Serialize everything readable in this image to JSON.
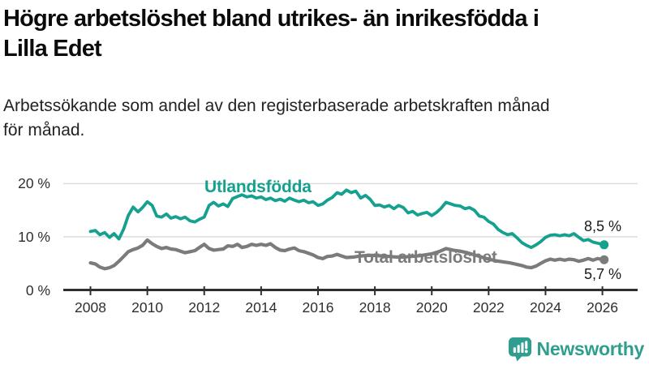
{
  "chart_data": {
    "type": "line",
    "title": "Högre arbetslöshet bland utrikes- än inrikesfödda i Lilla Edet",
    "title_lines": [
      "Högre arbetslöshet bland utrikes- än inrikesfödda i",
      "Lilla Edet"
    ],
    "subtitle": "Arbetssökande som andel av den registerbaserade arbetskraften månad för månad.",
    "subtitle_lines": [
      "Arbetssökande som andel av den registerbaserade arbetskraften månad",
      "för månad."
    ],
    "unit": "%",
    "grid": "horizontal",
    "legend": "inline-labels",
    "x_axis": {
      "range": [
        2008,
        2026.1
      ],
      "ticks": [
        {
          "value": 2008,
          "label": "2008"
        },
        {
          "value": 2010,
          "label": "2010"
        },
        {
          "value": 2012,
          "label": "2012"
        },
        {
          "value": 2014,
          "label": "2014"
        },
        {
          "value": 2016,
          "label": "2016"
        },
        {
          "value": 2018,
          "label": "2018"
        },
        {
          "value": 2020,
          "label": "2020"
        },
        {
          "value": 2022,
          "label": "2022"
        },
        {
          "value": 2024,
          "label": "2024"
        },
        {
          "value": 2026,
          "label": "2026"
        }
      ]
    },
    "y_axis": {
      "range": [
        0,
        22
      ],
      "ticks": [
        {
          "value": 0,
          "label": "0 %"
        },
        {
          "value": 10,
          "label": "10 %"
        },
        {
          "value": 20,
          "label": "20 %"
        }
      ]
    },
    "style": {
      "grid_color": "#d9d9d9",
      "axis_color": "#2f2f2f"
    },
    "series": [
      {
        "name": "Utlandsfödda",
        "color": "#15a08f",
        "end_value": 8.5,
        "end_label": "8,5 %",
        "points": [
          [
            2008.0,
            11.0
          ],
          [
            2008.17,
            11.2
          ],
          [
            2008.33,
            10.4
          ],
          [
            2008.5,
            10.8
          ],
          [
            2008.67,
            9.9
          ],
          [
            2008.83,
            10.6
          ],
          [
            2009.0,
            9.6
          ],
          [
            2009.17,
            11.5
          ],
          [
            2009.33,
            14.0
          ],
          [
            2009.5,
            15.6
          ],
          [
            2009.67,
            14.7
          ],
          [
            2009.83,
            15.5
          ],
          [
            2010.0,
            16.6
          ],
          [
            2010.17,
            15.9
          ],
          [
            2010.33,
            13.9
          ],
          [
            2010.5,
            13.7
          ],
          [
            2010.67,
            14.3
          ],
          [
            2010.83,
            13.5
          ],
          [
            2011.0,
            13.8
          ],
          [
            2011.17,
            13.4
          ],
          [
            2011.33,
            13.7
          ],
          [
            2011.5,
            13.0
          ],
          [
            2011.67,
            12.8
          ],
          [
            2011.83,
            13.3
          ],
          [
            2012.0,
            13.7
          ],
          [
            2012.17,
            15.9
          ],
          [
            2012.33,
            16.5
          ],
          [
            2012.5,
            15.8
          ],
          [
            2012.67,
            16.2
          ],
          [
            2012.83,
            15.7
          ],
          [
            2013.0,
            17.2
          ],
          [
            2013.17,
            17.6
          ],
          [
            2013.33,
            17.9
          ],
          [
            2013.5,
            17.5
          ],
          [
            2013.67,
            17.7
          ],
          [
            2013.83,
            17.3
          ],
          [
            2014.0,
            17.5
          ],
          [
            2014.17,
            17.0
          ],
          [
            2014.33,
            17.3
          ],
          [
            2014.5,
            16.8
          ],
          [
            2014.67,
            17.1
          ],
          [
            2014.83,
            16.7
          ],
          [
            2015.0,
            17.3
          ],
          [
            2015.17,
            16.9
          ],
          [
            2015.33,
            16.6
          ],
          [
            2015.5,
            16.9
          ],
          [
            2015.67,
            16.4
          ],
          [
            2015.83,
            16.6
          ],
          [
            2016.0,
            15.9
          ],
          [
            2016.17,
            16.2
          ],
          [
            2016.33,
            16.9
          ],
          [
            2016.5,
            17.4
          ],
          [
            2016.67,
            18.3
          ],
          [
            2016.83,
            18.0
          ],
          [
            2017.0,
            18.8
          ],
          [
            2017.17,
            18.3
          ],
          [
            2017.33,
            18.6
          ],
          [
            2017.5,
            17.3
          ],
          [
            2017.67,
            17.8
          ],
          [
            2017.83,
            17.1
          ],
          [
            2018.0,
            15.9
          ],
          [
            2018.17,
            16.0
          ],
          [
            2018.33,
            15.6
          ],
          [
            2018.5,
            15.9
          ],
          [
            2018.67,
            15.3
          ],
          [
            2018.83,
            15.9
          ],
          [
            2019.0,
            15.5
          ],
          [
            2019.17,
            14.5
          ],
          [
            2019.33,
            14.8
          ],
          [
            2019.5,
            14.1
          ],
          [
            2019.67,
            14.4
          ],
          [
            2019.83,
            14.6
          ],
          [
            2020.0,
            14.0
          ],
          [
            2020.17,
            14.6
          ],
          [
            2020.33,
            15.4
          ],
          [
            2020.5,
            16.5
          ],
          [
            2020.67,
            16.2
          ],
          [
            2020.83,
            15.9
          ],
          [
            2021.0,
            15.8
          ],
          [
            2021.17,
            15.3
          ],
          [
            2021.33,
            15.5
          ],
          [
            2021.5,
            15.0
          ],
          [
            2021.67,
            13.9
          ],
          [
            2021.83,
            13.7
          ],
          [
            2022.0,
            12.9
          ],
          [
            2022.17,
            12.4
          ],
          [
            2022.33,
            11.4
          ],
          [
            2022.5,
            10.8
          ],
          [
            2022.67,
            10.4
          ],
          [
            2022.83,
            10.6
          ],
          [
            2023.0,
            9.8
          ],
          [
            2023.17,
            8.9
          ],
          [
            2023.33,
            8.4
          ],
          [
            2023.5,
            8.0
          ],
          [
            2023.67,
            8.5
          ],
          [
            2023.83,
            9.1
          ],
          [
            2024.0,
            9.9
          ],
          [
            2024.17,
            10.3
          ],
          [
            2024.33,
            10.4
          ],
          [
            2024.5,
            10.2
          ],
          [
            2024.67,
            10.4
          ],
          [
            2024.83,
            10.2
          ],
          [
            2025.0,
            10.6
          ],
          [
            2025.17,
            9.9
          ],
          [
            2025.33,
            9.3
          ],
          [
            2025.5,
            9.5
          ],
          [
            2025.67,
            9.0
          ],
          [
            2025.83,
            8.8
          ],
          [
            2026.06,
            8.5
          ]
        ]
      },
      {
        "name": "Total arbetslöshet",
        "color": "#7b7b7b",
        "end_value": 5.7,
        "end_label": "5,7 %",
        "points": [
          [
            2008.0,
            5.1
          ],
          [
            2008.17,
            4.9
          ],
          [
            2008.33,
            4.3
          ],
          [
            2008.5,
            4.0
          ],
          [
            2008.67,
            4.2
          ],
          [
            2008.83,
            4.6
          ],
          [
            2009.0,
            5.4
          ],
          [
            2009.17,
            6.3
          ],
          [
            2009.33,
            7.2
          ],
          [
            2009.5,
            7.6
          ],
          [
            2009.67,
            7.9
          ],
          [
            2009.83,
            8.4
          ],
          [
            2010.0,
            9.4
          ],
          [
            2010.17,
            8.7
          ],
          [
            2010.33,
            8.2
          ],
          [
            2010.5,
            7.8
          ],
          [
            2010.67,
            8.0
          ],
          [
            2010.83,
            7.7
          ],
          [
            2011.0,
            7.6
          ],
          [
            2011.17,
            7.3
          ],
          [
            2011.33,
            7.0
          ],
          [
            2011.5,
            7.2
          ],
          [
            2011.67,
            7.4
          ],
          [
            2011.83,
            8.0
          ],
          [
            2012.0,
            8.6
          ],
          [
            2012.17,
            7.8
          ],
          [
            2012.33,
            7.5
          ],
          [
            2012.5,
            7.6
          ],
          [
            2012.67,
            7.7
          ],
          [
            2012.83,
            8.3
          ],
          [
            2013.0,
            8.2
          ],
          [
            2013.17,
            8.6
          ],
          [
            2013.33,
            8.0
          ],
          [
            2013.5,
            8.2
          ],
          [
            2013.67,
            8.6
          ],
          [
            2013.83,
            8.4
          ],
          [
            2014.0,
            8.6
          ],
          [
            2014.17,
            8.4
          ],
          [
            2014.33,
            8.7
          ],
          [
            2014.5,
            8.0
          ],
          [
            2014.67,
            7.5
          ],
          [
            2014.83,
            7.4
          ],
          [
            2015.0,
            7.7
          ],
          [
            2015.17,
            7.9
          ],
          [
            2015.33,
            7.4
          ],
          [
            2015.5,
            7.2
          ],
          [
            2015.67,
            6.9
          ],
          [
            2015.83,
            6.6
          ],
          [
            2016.0,
            6.1
          ],
          [
            2016.17,
            5.9
          ],
          [
            2016.33,
            6.3
          ],
          [
            2016.5,
            6.4
          ],
          [
            2016.67,
            6.7
          ],
          [
            2016.83,
            6.4
          ],
          [
            2017.0,
            6.1
          ],
          [
            2017.25,
            6.2
          ],
          [
            2017.5,
            6.4
          ],
          [
            2017.75,
            6.5
          ],
          [
            2018.0,
            6.5
          ],
          [
            2018.25,
            6.4
          ],
          [
            2018.5,
            6.3
          ],
          [
            2018.75,
            6.2
          ],
          [
            2019.0,
            6.2
          ],
          [
            2019.25,
            6.3
          ],
          [
            2019.5,
            6.4
          ],
          [
            2019.75,
            6.6
          ],
          [
            2020.0,
            6.8
          ],
          [
            2020.25,
            7.2
          ],
          [
            2020.5,
            7.8
          ],
          [
            2020.75,
            7.5
          ],
          [
            2021.0,
            7.3
          ],
          [
            2021.25,
            7.0
          ],
          [
            2021.5,
            6.6
          ],
          [
            2021.75,
            6.2
          ],
          [
            2022.0,
            5.8
          ],
          [
            2022.25,
            5.5
          ],
          [
            2022.5,
            5.3
          ],
          [
            2022.75,
            5.1
          ],
          [
            2023.0,
            4.8
          ],
          [
            2023.17,
            4.6
          ],
          [
            2023.33,
            4.3
          ],
          [
            2023.5,
            4.2
          ],
          [
            2023.67,
            4.5
          ],
          [
            2023.83,
            5.0
          ],
          [
            2024.0,
            5.5
          ],
          [
            2024.17,
            5.8
          ],
          [
            2024.33,
            5.6
          ],
          [
            2024.5,
            5.8
          ],
          [
            2024.67,
            5.6
          ],
          [
            2024.83,
            5.8
          ],
          [
            2025.0,
            5.7
          ],
          [
            2025.17,
            5.4
          ],
          [
            2025.33,
            5.6
          ],
          [
            2025.5,
            5.9
          ],
          [
            2025.67,
            5.6
          ],
          [
            2025.83,
            5.9
          ],
          [
            2026.06,
            5.7
          ]
        ]
      }
    ]
  },
  "footer": {
    "brand": "Newsworthy",
    "brand_color": "#2f9e8f"
  }
}
